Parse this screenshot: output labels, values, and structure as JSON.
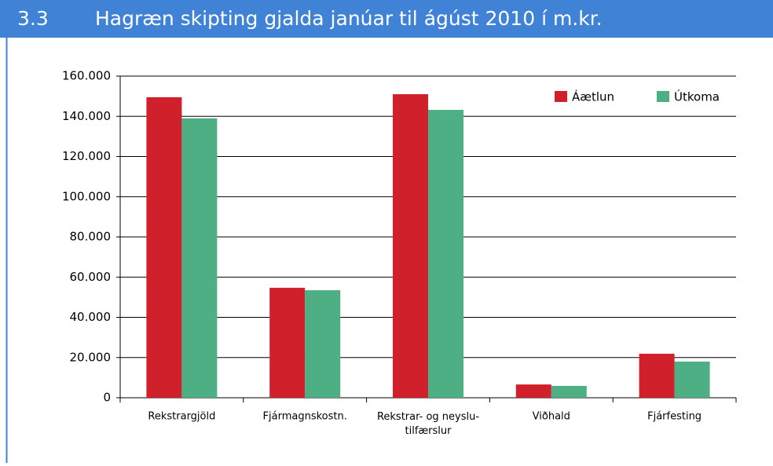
{
  "chart_data": {
    "type": "bar",
    "section": "3.3",
    "title": "Hagræn skipting gjalda janúar til ágúst 2010 í m.kr.",
    "categories": [
      "Rekstrargjöld",
      "Fjármagnskostn.",
      "Rekstrar- og neyslu-\ntilfærslur",
      "Viðhald",
      "Fjárfesting"
    ],
    "series": [
      {
        "name": "Áætlun",
        "color": "#d0202b",
        "values": [
          149500,
          54700,
          151000,
          6600,
          21900
        ]
      },
      {
        "name": "Útkoma",
        "color": "#4faf84",
        "values": [
          139000,
          53500,
          143200,
          5900,
          18000
        ]
      }
    ],
    "ylim": [
      0,
      160000
    ],
    "yticks": [
      0,
      {
        "value": 20000,
        "label": "20.000"
      },
      {
        "value": 40000,
        "label": "40.000"
      },
      {
        "value": 60000,
        "label": "60.000"
      },
      {
        "value": 80000,
        "label": "80.000"
      },
      {
        "value": 100000,
        "label": "100.000"
      },
      {
        "value": 120000,
        "label": "120.000"
      },
      {
        "value": 140000,
        "label": "140.000"
      },
      {
        "value": 160000,
        "label": "160.000"
      }
    ],
    "grid": true,
    "legend": "top-right"
  }
}
